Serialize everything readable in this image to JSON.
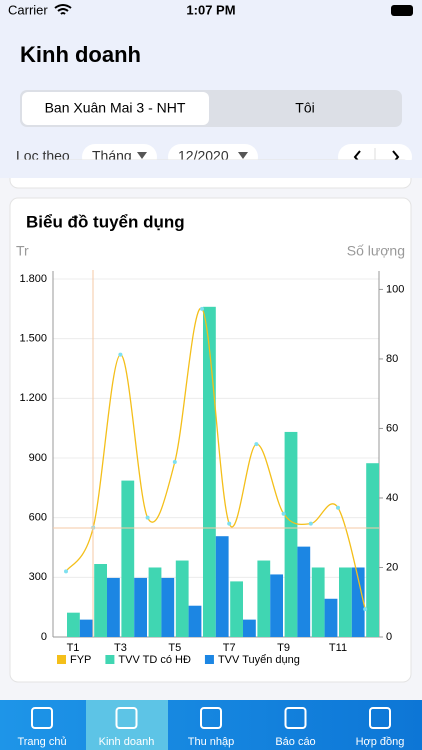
{
  "status_bar": {
    "carrier": "Carrier",
    "time": "1:07 PM"
  },
  "header": {
    "title": "Kinh doanh"
  },
  "segments": [
    "Ban Xuân Mai 3 - NHT",
    "Tôi"
  ],
  "filter": {
    "label": "Lọc theo",
    "period": "Tháng",
    "month": "12/2020"
  },
  "chart_data": {
    "type": "bar",
    "title": "Biểu đồ tuyển dụng",
    "y_label": "Tr",
    "y2_label": "Số lượng",
    "categories": [
      "T1",
      null,
      "T3",
      null,
      "T5",
      null,
      "T7",
      null,
      "T9",
      null,
      "T11",
      null
    ],
    "series": [
      {
        "name": "FYP",
        "color": "#f4bf1a",
        "type": "line",
        "values": [
          330,
          550,
          1420,
          600,
          880,
          1650,
          570,
          970,
          620,
          570,
          650,
          140
        ]
      },
      {
        "name": "TVV TD có HĐ",
        "color": "#40d6b2",
        "axis": "y2",
        "values": [
          7,
          21,
          45,
          20,
          22,
          95,
          16,
          22,
          59,
          20,
          20,
          50
        ]
      },
      {
        "name": "TVV Tuyển dụng",
        "color": "#1c86e3",
        "axis": "y2",
        "values": [
          5,
          17,
          17,
          17,
          9,
          29,
          5,
          18,
          26,
          11,
          20,
          null
        ]
      }
    ],
    "ylim": [
      0,
      1800
    ],
    "yticks": [
      0,
      300,
      600,
      900,
      {
        "value": 1200,
        "label": "1.200"
      },
      {
        "value": 1500,
        "label": "1.500"
      },
      {
        "value": 1800,
        "label": "1.800"
      }
    ],
    "y2lim": [
      0,
      103
    ],
    "y2ticks": [
      0,
      20,
      40,
      60,
      80,
      100
    ],
    "grid": true,
    "legend": "bottom"
  },
  "tabs": [
    "Trang chủ",
    "Kinh doanh",
    "Thu nhập",
    "Báo cáo",
    "Hợp đồng"
  ]
}
